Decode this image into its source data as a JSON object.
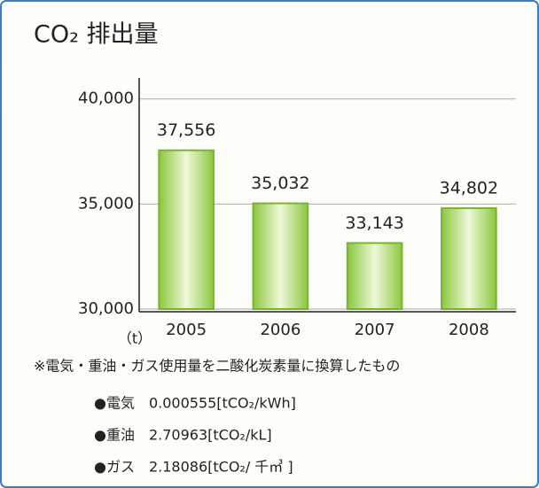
{
  "chart_data": {
    "type": "bar",
    "title": "CO₂ 排出量",
    "categories": [
      "2005",
      "2006",
      "2007",
      "2008"
    ],
    "values": [
      37556,
      35032,
      33143,
      34802
    ],
    "value_labels": [
      "37,556",
      "35,032",
      "33,143",
      "34,802"
    ],
    "color": "#8cc63f",
    "ylim": [
      30000,
      41000
    ],
    "yticks": [
      {
        "value": 30000,
        "label": "30,000"
      },
      {
        "value": 35000,
        "label": "35,000"
      },
      {
        "value": 40000,
        "label": "40,000"
      }
    ],
    "grid": true,
    "unit": "（t）",
    "note": "※電気・重油・ガス使用量を二酸化炭素量に換算したもの",
    "factors": [
      "●電気　0.000555[tCO₂/kWh]",
      "●重油　2.70963[tCO₂/kL]",
      "●ガス　2.18086[tCO₂/ 千㎥ ]"
    ]
  }
}
